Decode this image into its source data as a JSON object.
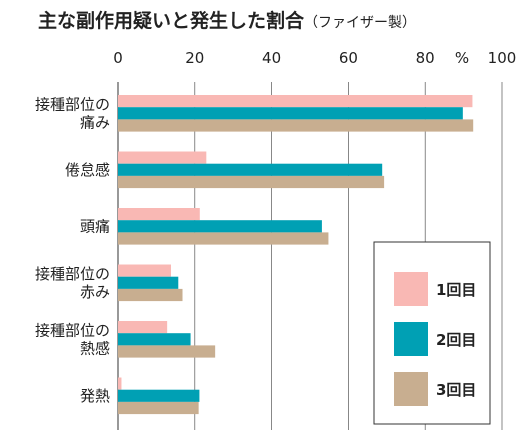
{
  "chart_data": {
    "type": "bar",
    "orientation": "horizontal",
    "title": "主な副作用疑いと発生した割合",
    "subtitle": "（ファイザー製）",
    "unit_label": "%",
    "xlim": [
      0,
      100
    ],
    "ticks": [
      0,
      20,
      40,
      60,
      80,
      100
    ],
    "grid": true,
    "legend_position": "bottom-right",
    "categories": [
      [
        "接種部位の",
        "痛み"
      ],
      [
        "倦怠感"
      ],
      [
        "頭痛"
      ],
      [
        "接種部位の",
        "赤み"
      ],
      [
        "接種部位の",
        "熱感"
      ],
      [
        "発熱"
      ]
    ],
    "series": [
      {
        "name": "1回目",
        "color": "#f9b8b4",
        "values": [
          92.3,
          23.0,
          21.3,
          13.8,
          12.8,
          0.9
        ]
      },
      {
        "name": "2回目",
        "color": "#00a0b4",
        "values": [
          89.8,
          68.8,
          53.1,
          15.7,
          18.9,
          21.2
        ]
      },
      {
        "name": "3回目",
        "color": "#c8ae90",
        "values": [
          92.5,
          69.3,
          54.8,
          16.8,
          25.3,
          21.0
        ]
      }
    ]
  }
}
